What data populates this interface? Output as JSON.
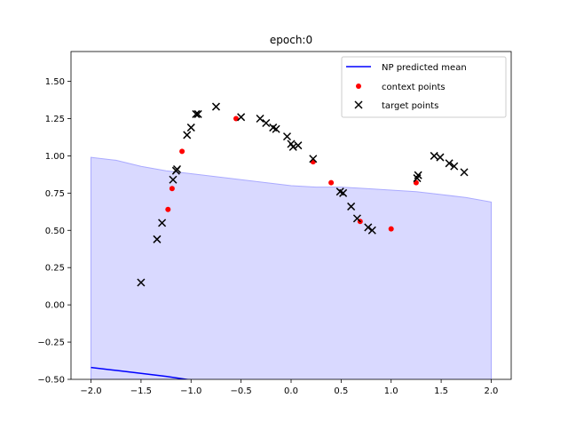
{
  "chart_data": {
    "type": "scatter",
    "title": "epoch:0",
    "xlabel": "",
    "ylabel": "",
    "xlim": [
      -2.2,
      2.2
    ],
    "ylim": [
      -0.5,
      1.7
    ],
    "xticks": [
      -2.0,
      -1.5,
      -1.0,
      -0.5,
      0.0,
      0.5,
      1.0,
      1.5,
      2.0
    ],
    "xtick_labels": [
      "−2.0",
      "−1.5",
      "−1.0",
      "−0.5",
      "0.0",
      "0.5",
      "1.0",
      "1.5",
      "2.0"
    ],
    "yticks": [
      -0.5,
      -0.25,
      0.0,
      0.25,
      0.5,
      0.75,
      1.0,
      1.25,
      1.5
    ],
    "ytick_labels": [
      "−0.50",
      "−0.25",
      "0.00",
      "0.25",
      "0.50",
      "0.75",
      "1.00",
      "1.25",
      "1.50"
    ],
    "legend_position": "top-right",
    "colors": {
      "mean": "#0000ff",
      "band": "#ccccff",
      "band_edge": "#aaaaff",
      "context": "#ff0000",
      "target": "#000000"
    },
    "series": [
      {
        "name": "NP predicted mean",
        "kind": "line",
        "x": [
          -2.0,
          -1.75,
          -1.5,
          -1.25,
          -1.0,
          -0.9
        ],
        "y": [
          -0.42,
          -0.44,
          -0.46,
          -0.48,
          -0.505,
          -0.52
        ]
      },
      {
        "name": "context points",
        "kind": "scatter-dot",
        "x": [
          -1.23,
          -1.19,
          -1.09,
          -0.55,
          0.22,
          0.4,
          0.69,
          1.0,
          1.25
        ],
        "y": [
          0.64,
          0.78,
          1.03,
          1.25,
          0.96,
          0.82,
          0.56,
          0.51,
          0.82
        ]
      },
      {
        "name": "target points",
        "kind": "scatter-x",
        "x": [
          -1.5,
          -1.34,
          -1.29,
          -1.18,
          -1.15,
          -1.14,
          -1.04,
          -1.0,
          -0.95,
          -0.93,
          -0.75,
          -0.5,
          -0.31,
          -0.25,
          -0.18,
          -0.15,
          -0.04,
          0.0,
          0.02,
          0.07,
          0.22,
          0.49,
          0.52,
          0.6,
          0.66,
          0.77,
          0.81,
          1.26,
          1.27,
          1.43,
          1.49,
          1.58,
          1.63,
          1.73
        ],
        "y": [
          0.15,
          0.44,
          0.55,
          0.84,
          0.9,
          0.91,
          1.14,
          1.19,
          1.28,
          1.28,
          1.33,
          1.26,
          1.25,
          1.22,
          1.19,
          1.18,
          1.13,
          1.08,
          1.06,
          1.07,
          0.98,
          0.76,
          0.75,
          0.66,
          0.58,
          0.52,
          0.5,
          0.85,
          0.87,
          1.0,
          0.99,
          0.95,
          0.93,
          0.89
        ]
      }
    ],
    "band": {
      "x": [
        -2.0,
        -1.75,
        -1.5,
        -1.25,
        -1.0,
        -0.75,
        -0.5,
        -0.25,
        0.0,
        0.25,
        0.5,
        0.75,
        1.0,
        1.25,
        1.5,
        1.75,
        2.0
      ],
      "upper": [
        0.99,
        0.97,
        0.93,
        0.9,
        0.88,
        0.86,
        0.84,
        0.82,
        0.8,
        0.79,
        0.79,
        0.78,
        0.77,
        0.76,
        0.74,
        0.72,
        0.69
      ],
      "lower": [
        -0.5,
        -0.5,
        -0.5,
        -0.5,
        -0.5,
        -0.5,
        -0.5,
        -0.5,
        -0.5,
        -0.5,
        -0.5,
        -0.5,
        -0.5,
        -0.5,
        -0.5,
        -0.5,
        -0.5
      ]
    }
  }
}
